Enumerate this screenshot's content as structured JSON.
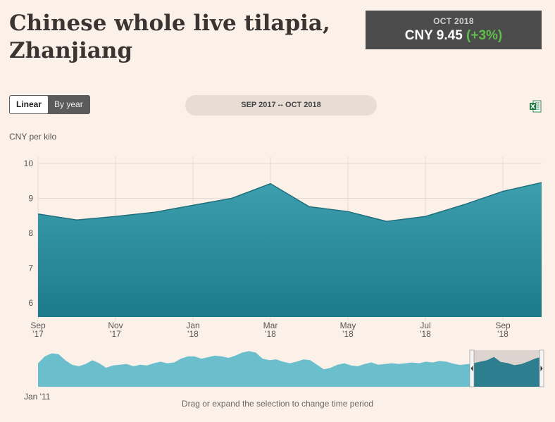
{
  "title": "Chinese whole live tilapia, Zhanjiang",
  "summary": {
    "period": "OCT 2018",
    "price": "CNY 9.45",
    "change": "(+3%)"
  },
  "controls": {
    "linear": "Linear",
    "by_year": "By year",
    "range": "SEP 2017 -- OCT 2018"
  },
  "icons": {
    "export": "excel-icon"
  },
  "navigator": {
    "start_label": "Jan '11",
    "hint": "Drag or expand the selection to change time period"
  },
  "colors": {
    "area_top": "#3c9fae",
    "area_bottom": "#1d7a8c",
    "navigator": "#63bccb",
    "selection": "#ddd4cf"
  },
  "chart_data": {
    "type": "area",
    "ylabel": "CNY per kilo",
    "ylim": [
      5.6,
      10.2
    ],
    "yticks": [
      6,
      7,
      8,
      9,
      10
    ],
    "grid": true,
    "xticks": [
      {
        "i": 0,
        "l1": "Sep",
        "l2": "'17"
      },
      {
        "i": 2,
        "l1": "Nov",
        "l2": "'17"
      },
      {
        "i": 4,
        "l1": "Jan",
        "l2": "'18"
      },
      {
        "i": 6,
        "l1": "Mar",
        "l2": "'18"
      },
      {
        "i": 8,
        "l1": "May",
        "l2": "'18"
      },
      {
        "i": 10,
        "l1": "Jul",
        "l2": "'18"
      },
      {
        "i": 12,
        "l1": "Sep",
        "l2": "'18"
      }
    ],
    "x": [
      "Sep 2017",
      "Oct 2017",
      "Nov 2017",
      "Dec 2017",
      "Jan 2018",
      "Feb 2018",
      "Mar 2018",
      "Apr 2018",
      "May 2018",
      "Jun 2018",
      "Jul 2018",
      "Aug 2018",
      "Sep 2018",
      "Oct 2018"
    ],
    "values": [
      8.55,
      8.38,
      8.48,
      8.6,
      8.8,
      9.0,
      9.42,
      8.76,
      8.62,
      8.34,
      8.48,
      8.82,
      9.2,
      9.45
    ],
    "navigator_values": [
      8.6,
      9.5,
      9.9,
      9.8,
      9.0,
      8.4,
      8.2,
      8.5,
      9.0,
      8.6,
      8.0,
      8.3,
      8.4,
      8.5,
      8.2,
      8.4,
      8.3,
      8.6,
      8.8,
      8.6,
      8.7,
      9.2,
      9.5,
      9.5,
      9.2,
      9.4,
      9.6,
      9.5,
      9.3,
      9.6,
      10.0,
      10.2,
      10.0,
      9.2,
      9.0,
      9.1,
      8.8,
      8.6,
      8.8,
      9.1,
      9.0,
      8.4,
      7.8,
      8.0,
      8.4,
      8.6,
      8.3,
      8.2,
      8.5,
      8.7,
      8.4,
      8.5,
      8.6,
      8.5,
      8.6,
      8.7,
      8.6,
      8.8,
      8.7,
      8.9,
      8.8,
      8.55,
      8.38,
      8.48,
      8.6,
      8.8,
      9.0,
      9.42,
      8.76,
      8.62,
      8.34,
      8.48,
      8.82,
      9.2,
      9.45
    ]
  }
}
